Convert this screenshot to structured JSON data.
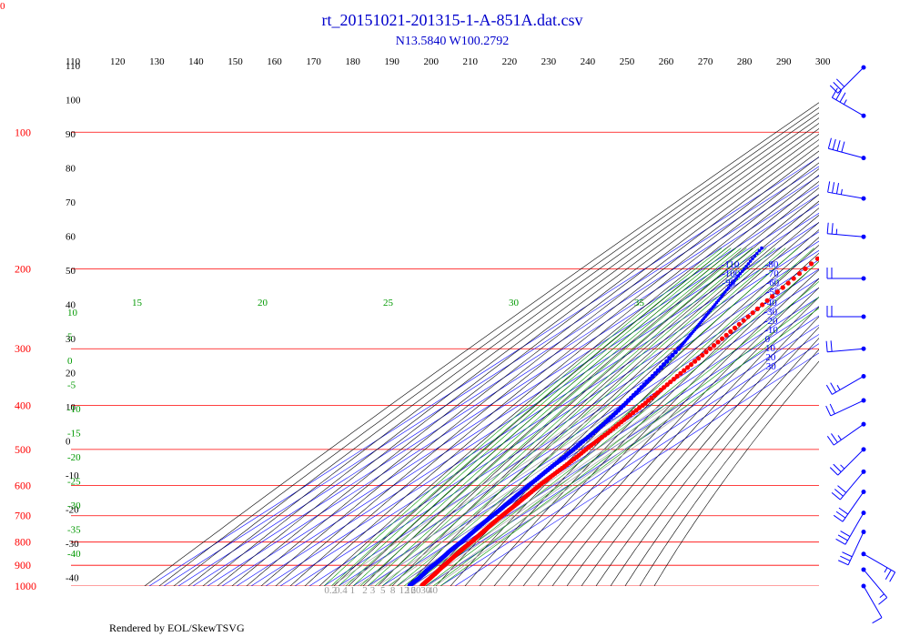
{
  "corner_label": "0",
  "title": "rt_20151021-201315-1-A-851A.dat.csv",
  "subtitle": "N13.5840 W100.2792",
  "footer": "Rendered by EOL/SkewTSVG",
  "colors": {
    "title": "#0000cc",
    "isobar": "#ff0000",
    "isotherm": "#0000ff",
    "dry_adiabat": "#000000",
    "moist_adiabat": "#009900",
    "mixing_ratio": "#999999",
    "temperature": "#ff0000",
    "dewpoint": "#0000ff",
    "wind_barb": "#0000ff"
  },
  "chart_data": {
    "type": "line",
    "diagram": "skew-t log-p",
    "pressure_axis": {
      "scale": "log",
      "range_hpa": [
        1000,
        70
      ],
      "tick_labels": [
        "100",
        "200",
        "300",
        "400",
        "500",
        "600",
        "700",
        "800",
        "900",
        "1000"
      ],
      "tick_values": [
        100,
        200,
        300,
        400,
        500,
        600,
        700,
        800,
        900,
        1000
      ]
    },
    "theta_top_labels": [
      "110",
      "120",
      "130",
      "140",
      "150",
      "160",
      "170",
      "180",
      "190",
      "200",
      "210",
      "220",
      "230",
      "240",
      "250",
      "260",
      "270",
      "280",
      "290",
      "300"
    ],
    "theta_top_values": [
      110,
      120,
      130,
      140,
      150,
      160,
      170,
      180,
      190,
      200,
      210,
      220,
      230,
      240,
      250,
      260,
      270,
      280,
      290,
      300
    ],
    "theta_left_labels": [
      "110",
      "100",
      "90",
      "80",
      "70",
      "60",
      "50",
      "40",
      "30",
      "20",
      "10",
      "0",
      "-10",
      "-20",
      "-30",
      "-40"
    ],
    "theta_left_values": [
      110,
      100,
      90,
      80,
      70,
      60,
      50,
      40,
      30,
      20,
      10,
      0,
      -10,
      -20,
      -30,
      -40
    ],
    "isotherm_labels": [
      "-110",
      "-100",
      "-90",
      "-80",
      "-70",
      "-60",
      "-50",
      "-40",
      "-30",
      "-20",
      "-10",
      "0",
      "10",
      "20",
      "30"
    ],
    "isotherm_values": [
      -110,
      -100,
      -90,
      -80,
      -70,
      -60,
      -50,
      -40,
      -30,
      -20,
      -10,
      0,
      10,
      20,
      30
    ],
    "moist_top_labels": [
      "15",
      "20",
      "25",
      "30",
      "35"
    ],
    "moist_top_values": [
      15,
      20,
      25,
      30,
      35
    ],
    "moist_left_labels": [
      "10",
      "5",
      "0",
      "-5",
      "-10",
      "-15",
      "-20",
      "-25",
      "-30",
      "-35",
      "-40"
    ],
    "moist_left_values": [
      10,
      5,
      0,
      -5,
      -10,
      -15,
      -20,
      -25,
      -30,
      -35,
      -40
    ],
    "mixing_ratio_labels": [
      "0.2",
      "0.4",
      "1",
      "2",
      "3",
      "5",
      "8",
      "12",
      "16",
      "20",
      "30",
      "40"
    ],
    "mixing_ratio_values": [
      0.2,
      0.4,
      1,
      2,
      3,
      5,
      8,
      12,
      16,
      20,
      30,
      40
    ],
    "series": [
      {
        "name": "",
        "role": "temperature",
        "points": [
          [
            995,
            26.5
          ],
          [
            980,
            25.6
          ],
          [
            960,
            24.4
          ],
          [
            940,
            23.2
          ],
          [
            925,
            22.0
          ],
          [
            900,
            20.3
          ],
          [
            880,
            19.0
          ],
          [
            860,
            17.6
          ],
          [
            840,
            16.3
          ],
          [
            820,
            15.0
          ],
          [
            800,
            14.0
          ],
          [
            780,
            12.6
          ],
          [
            760,
            11.1
          ],
          [
            740,
            9.6
          ],
          [
            720,
            8.2
          ],
          [
            700,
            6.8
          ],
          [
            680,
            5.6
          ],
          [
            660,
            4.4
          ],
          [
            640,
            2.9
          ],
          [
            620,
            1.4
          ],
          [
            600,
            0.0
          ],
          [
            580,
            -1.1
          ],
          [
            560,
            -2.3
          ],
          [
            540,
            -3.4
          ],
          [
            520,
            -4.8
          ],
          [
            500,
            -6.6
          ],
          [
            480,
            -8.1
          ],
          [
            460,
            -9.3
          ],
          [
            440,
            -11.3
          ],
          [
            420,
            -13.2
          ],
          [
            400,
            -14.9
          ],
          [
            380,
            -17.5
          ],
          [
            360,
            -20.3
          ],
          [
            340,
            -23.2
          ],
          [
            320,
            -26.2
          ],
          [
            300,
            -29.4
          ],
          [
            280,
            -32.8
          ],
          [
            260,
            -36.6
          ],
          [
            240,
            -40.7
          ],
          [
            220,
            -45.0
          ],
          [
            200,
            -49.7
          ],
          [
            180,
            -54.6
          ],
          [
            160,
            -59.9
          ],
          [
            150,
            -62.7
          ],
          [
            140,
            -65.8
          ],
          [
            130,
            -69.2
          ],
          [
            125,
            -71.6
          ],
          [
            120,
            -73.2
          ],
          [
            115,
            -75.1
          ],
          [
            110,
            -77.0
          ],
          [
            105,
            -79.1
          ],
          [
            100,
            -80.8
          ],
          [
            97,
            -81.8
          ],
          [
            95,
            -82.6
          ],
          [
            93,
            -83.2
          ]
        ]
      },
      {
        "name": "",
        "role": "temperature-upper",
        "points": [
          [
            93,
            -80.5
          ],
          [
            92,
            -78.5
          ],
          [
            91,
            -71.0
          ],
          [
            91,
            -65.0
          ],
          [
            90,
            -61.0
          ],
          [
            89,
            -59.0
          ],
          [
            87,
            -57.0
          ],
          [
            85,
            -55.0
          ],
          [
            82,
            -52.0
          ],
          [
            79,
            -49.0
          ],
          [
            76,
            -46.0
          ],
          [
            74,
            -44.0
          ],
          [
            72,
            -42.0
          ],
          [
            71,
            -40.0
          ],
          [
            70,
            -38.0
          ]
        ]
      },
      {
        "name": "",
        "role": "dewpoint",
        "points": [
          [
            995,
            18.0
          ],
          [
            980,
            17.6
          ],
          [
            960,
            16.6
          ],
          [
            940,
            15.5
          ],
          [
            925,
            14.0
          ],
          [
            900,
            13.0
          ],
          [
            880,
            11.9
          ],
          [
            860,
            10.6
          ],
          [
            840,
            9.1
          ],
          [
            820,
            8.0
          ],
          [
            800,
            7.0
          ],
          [
            780,
            5.7
          ],
          [
            760,
            4.3
          ],
          [
            740,
            2.8
          ],
          [
            720,
            1.5
          ],
          [
            700,
            0.2
          ],
          [
            680,
            -1.0
          ],
          [
            660,
            -2.5
          ],
          [
            640,
            -4.0
          ],
          [
            620,
            -5.6
          ],
          [
            600,
            -7.3
          ],
          [
            580,
            -8.7
          ],
          [
            560,
            -10.4
          ],
          [
            540,
            -12.0
          ],
          [
            520,
            -13.4
          ],
          [
            500,
            -15.3
          ],
          [
            480,
            -17.3
          ],
          [
            460,
            -19.3
          ],
          [
            440,
            -21.7
          ],
          [
            420,
            -24.6
          ],
          [
            400,
            -28.0
          ],
          [
            380,
            -31.9
          ],
          [
            360,
            -36.0
          ],
          [
            340,
            -40.4
          ],
          [
            320,
            -45.5
          ],
          [
            300,
            -51.0
          ],
          [
            290,
            -54.2
          ],
          [
            280,
            -57.6
          ],
          [
            270,
            -61.2
          ],
          [
            260,
            -65.0
          ],
          [
            250,
            -69.0
          ],
          [
            240,
            -73.2
          ],
          [
            230,
            -77.6
          ],
          [
            220,
            -82.2
          ],
          [
            210,
            -86.8
          ],
          [
            200,
            -91.6
          ],
          [
            190,
            -96.8
          ],
          [
            180,
            -102.0
          ]
        ]
      }
    ],
    "wind_barbs": [
      {
        "pressure": 72,
        "speed_kt": 30,
        "direction_deg": 225
      },
      {
        "pressure": 92,
        "speed_kt": 35,
        "direction_deg": 300
      },
      {
        "pressure": 114,
        "speed_kt": 40,
        "direction_deg": 285
      },
      {
        "pressure": 140,
        "speed_kt": 35,
        "direction_deg": 280
      },
      {
        "pressure": 170,
        "speed_kt": 25,
        "direction_deg": 275
      },
      {
        "pressure": 210,
        "speed_kt": 20,
        "direction_deg": 270
      },
      {
        "pressure": 255,
        "speed_kt": 20,
        "direction_deg": 270
      },
      {
        "pressure": 300,
        "speed_kt": 20,
        "direction_deg": 265
      },
      {
        "pressure": 345,
        "speed_kt": 25,
        "direction_deg": 240
      },
      {
        "pressure": 390,
        "speed_kt": 20,
        "direction_deg": 245
      },
      {
        "pressure": 440,
        "speed_kt": 25,
        "direction_deg": 235
      },
      {
        "pressure": 500,
        "speed_kt": 25,
        "direction_deg": 225
      },
      {
        "pressure": 560,
        "speed_kt": 30,
        "direction_deg": 220
      },
      {
        "pressure": 620,
        "speed_kt": 30,
        "direction_deg": 215
      },
      {
        "pressure": 690,
        "speed_kt": 30,
        "direction_deg": 210
      },
      {
        "pressure": 760,
        "speed_kt": 30,
        "direction_deg": 205
      },
      {
        "pressure": 850,
        "speed_kt": 25,
        "direction_deg": 120
      },
      {
        "pressure": 920,
        "speed_kt": 15,
        "direction_deg": 140
      },
      {
        "pressure": 1000,
        "speed_kt": 10,
        "direction_deg": 150
      }
    ]
  }
}
